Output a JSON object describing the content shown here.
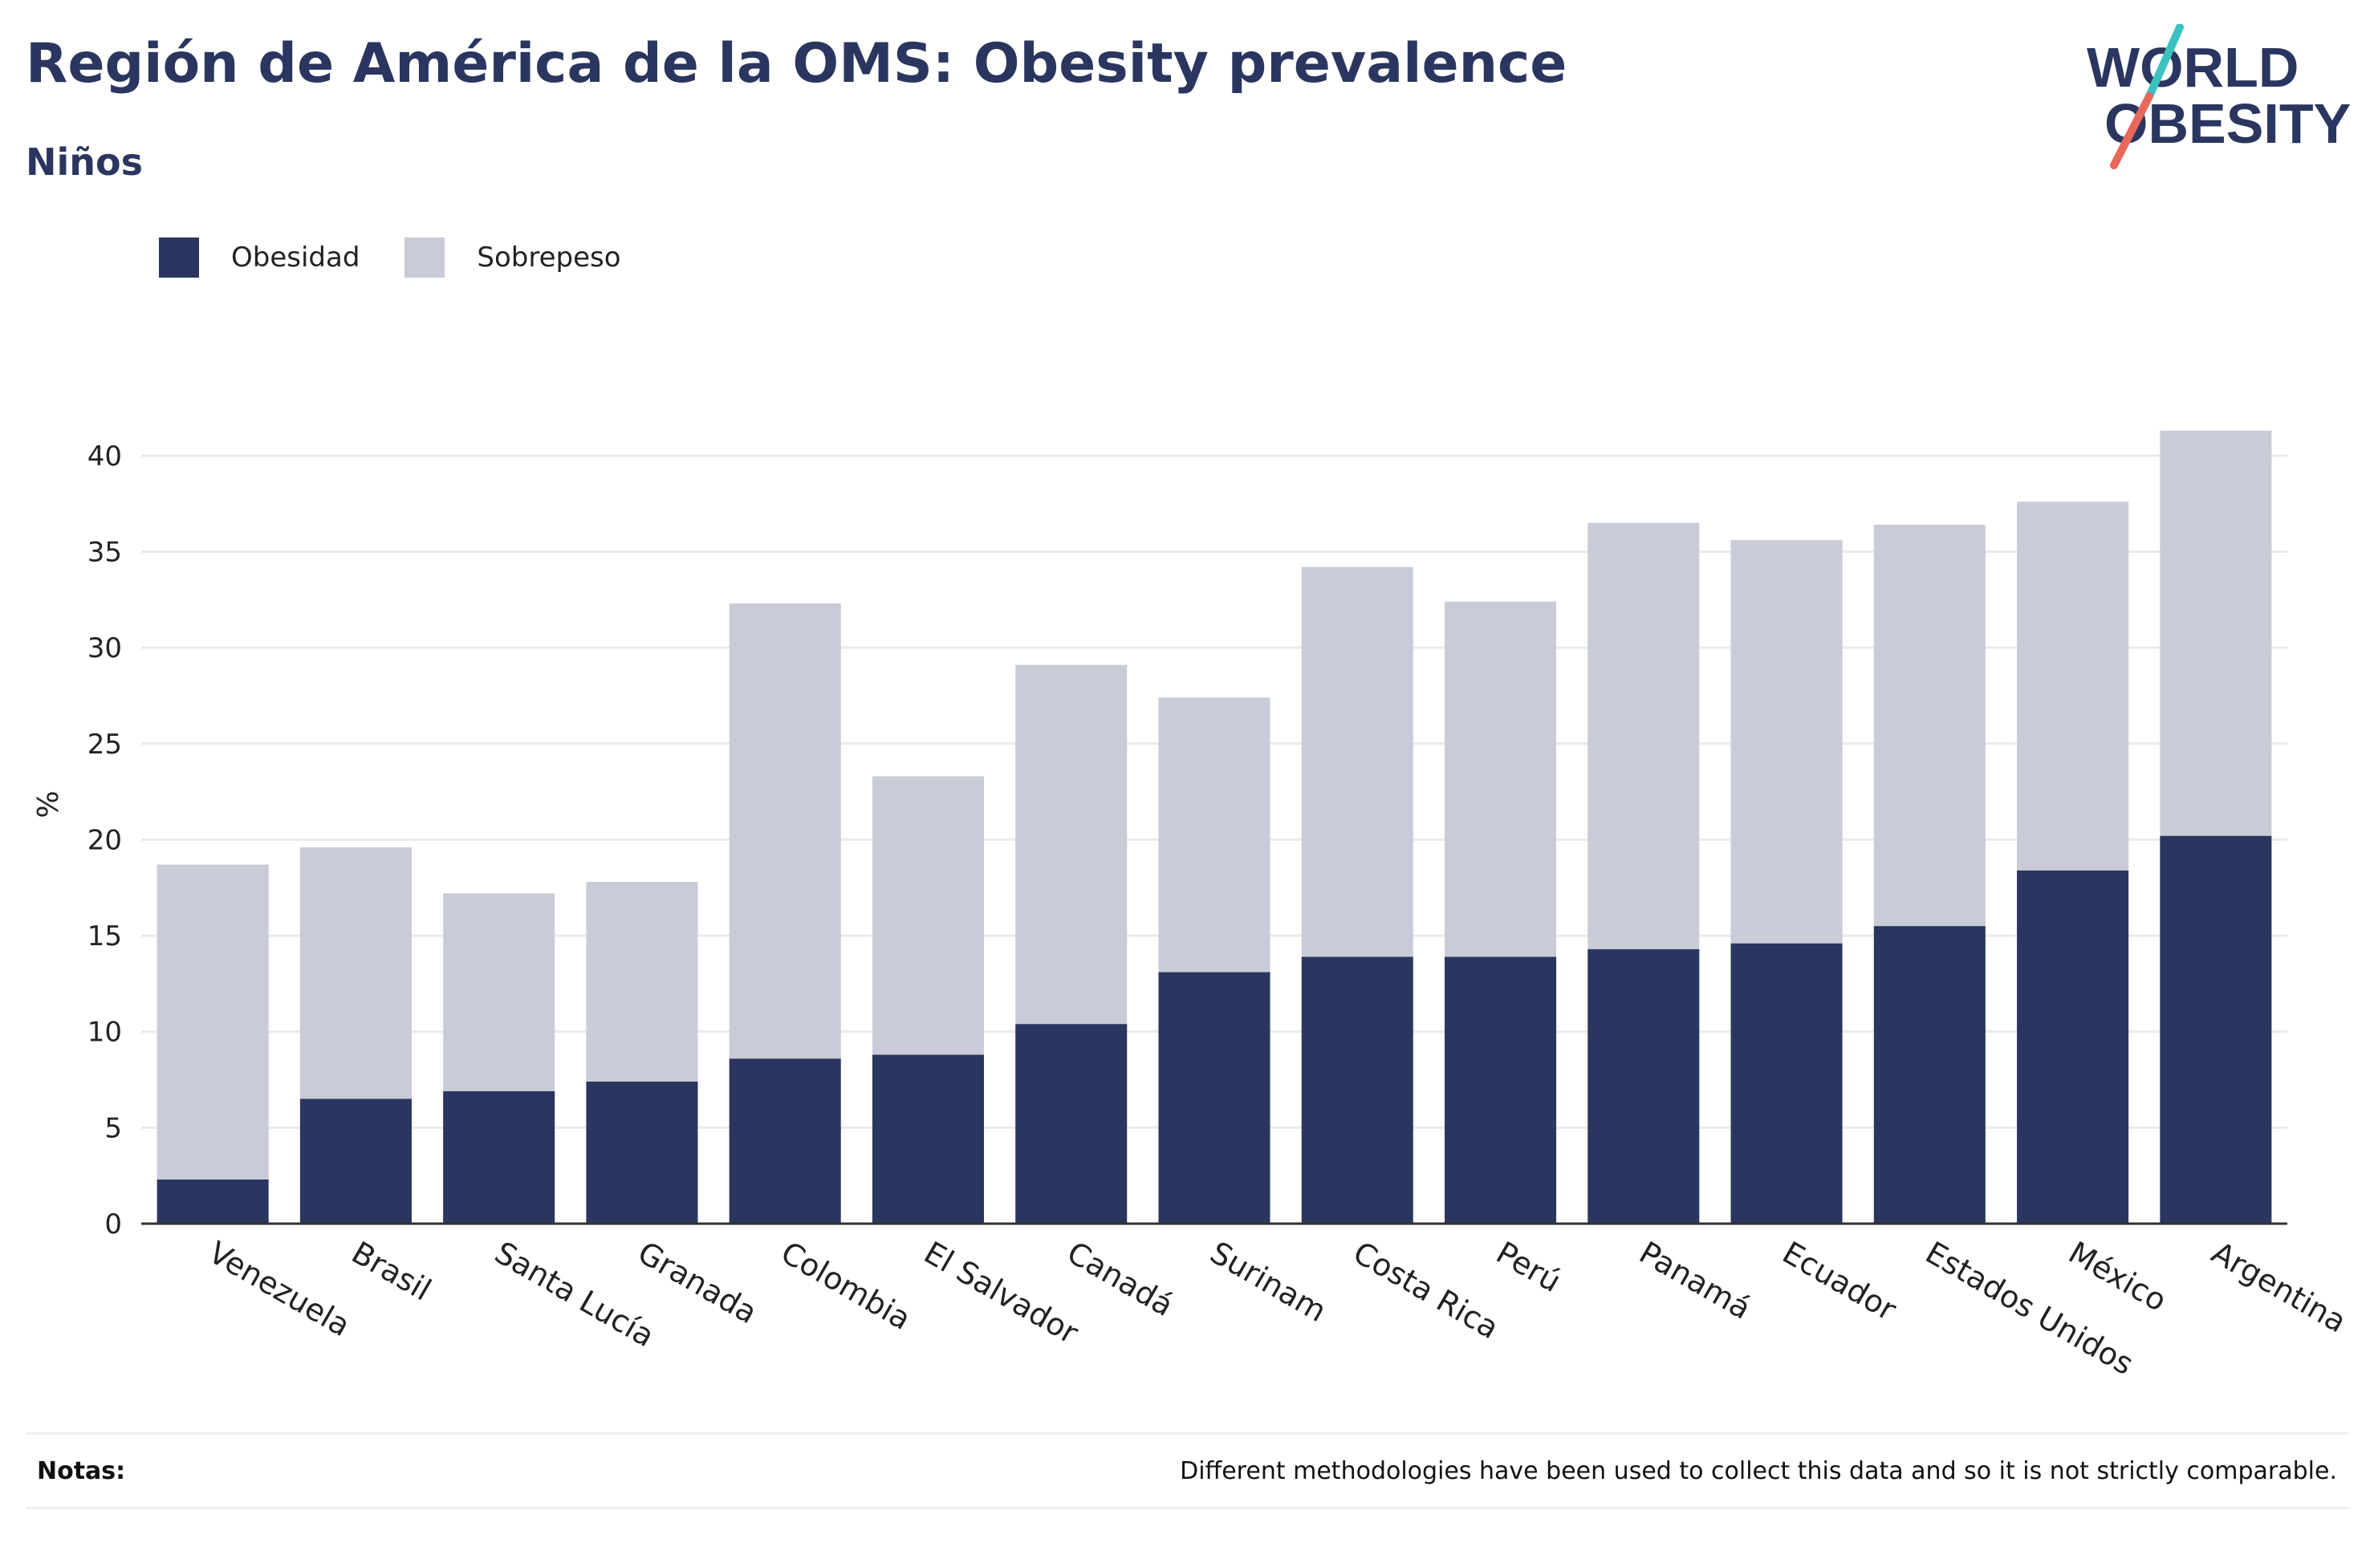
{
  "header": {
    "title": "Región de América de la OMS: Obesity prevalence",
    "subtitle": "Niños"
  },
  "logo": {
    "line1": "WORLD",
    "line2": "OBESITY",
    "slash_colors": [
      "#3cc1c1",
      "#e8695a"
    ]
  },
  "colors": {
    "obesidad": "#2a365f",
    "sobrepeso": "#c9cbd7",
    "grid": "#e8e9ee",
    "axis": "#333333"
  },
  "chart_data": {
    "type": "bar",
    "stacked": true,
    "title": "",
    "xlabel": "",
    "ylabel": "%",
    "ylim": [
      0,
      42
    ],
    "yticks": [
      0,
      5,
      10,
      15,
      20,
      25,
      30,
      35,
      40
    ],
    "grid": true,
    "legend_position": "top-left",
    "categories": [
      "Venezuela",
      "Brasil",
      "Santa Lucía",
      "Granada",
      "Colombia",
      "El Salvador",
      "Canadá",
      "Surinam",
      "Costa Rica",
      "Perú",
      "Panamá",
      "Ecuador",
      "Estados Unidos",
      "México",
      "Argentina"
    ],
    "series": [
      {
        "name": "Obesidad",
        "values": [
          2.3,
          6.5,
          6.9,
          7.4,
          8.6,
          8.8,
          10.4,
          13.1,
          13.9,
          13.9,
          14.3,
          14.6,
          15.5,
          18.4,
          20.2
        ]
      },
      {
        "name": "Sobrepeso",
        "values": [
          16.4,
          13.1,
          10.3,
          10.4,
          23.7,
          14.5,
          18.7,
          14.3,
          20.3,
          18.5,
          22.2,
          21.0,
          20.9,
          19.2,
          21.1
        ]
      }
    ]
  },
  "notes": {
    "label": "Notas:",
    "text": "Different methodologies have been used to collect this data and so it is not strictly comparable."
  }
}
